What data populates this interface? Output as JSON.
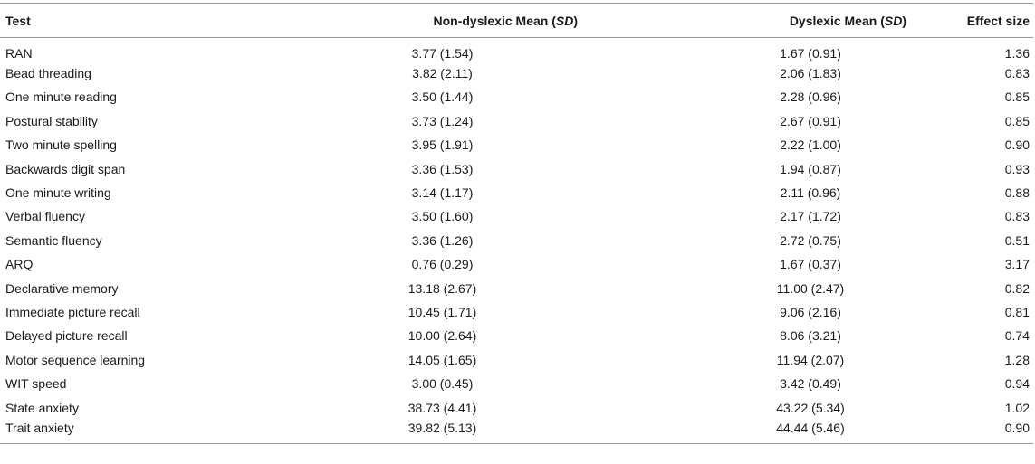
{
  "table": {
    "headers": {
      "test": "Test",
      "non_dyslexic_prefix": "Non-dyslexic Mean (",
      "non_dyslexic_sd": "SD",
      "non_dyslexic_suffix": ")",
      "dyslexic_prefix": "Dyslexic Mean (",
      "dyslexic_sd": "SD",
      "dyslexic_suffix": ")",
      "effect_size": "Effect size"
    },
    "rows": [
      {
        "test": "RAN",
        "non_dyslexic": "3.77 (1.54)",
        "dyslexic": "1.67 (0.91)",
        "effect_size": "1.36"
      },
      {
        "test": "Bead threading",
        "non_dyslexic": "3.82 (2.11)",
        "dyslexic": "2.06 (1.83)",
        "effect_size": "0.83"
      },
      {
        "test": "One minute reading",
        "non_dyslexic": "3.50 (1.44)",
        "dyslexic": "2.28 (0.96)",
        "effect_size": "0.85"
      },
      {
        "test": "Postural stability",
        "non_dyslexic": "3.73 (1.24)",
        "dyslexic": "2.67 (0.91)",
        "effect_size": "0.85"
      },
      {
        "test": "Two minute spelling",
        "non_dyslexic": "3.95 (1.91)",
        "dyslexic": "2.22 (1.00)",
        "effect_size": "0.90"
      },
      {
        "test": "Backwards digit span",
        "non_dyslexic": "3.36 (1.53)",
        "dyslexic": "1.94 (0.87)",
        "effect_size": "0.93"
      },
      {
        "test": "One minute writing",
        "non_dyslexic": "3.14 (1.17)",
        "dyslexic": "2.11 (0.96)",
        "effect_size": "0.88"
      },
      {
        "test": "Verbal fluency",
        "non_dyslexic": "3.50 (1.60)",
        "dyslexic": "2.17 (1.72)",
        "effect_size": "0.83"
      },
      {
        "test": "Semantic fluency",
        "non_dyslexic": "3.36 (1.26)",
        "dyslexic": "2.72 (0.75)",
        "effect_size": "0.51"
      },
      {
        "test": "ARQ",
        "non_dyslexic": "0.76 (0.29)",
        "dyslexic": "1.67 (0.37)",
        "effect_size": "3.17"
      },
      {
        "test": "Declarative memory",
        "non_dyslexic": "13.18 (2.67)",
        "dyslexic": "11.00 (2.47)",
        "effect_size": "0.82"
      },
      {
        "test": "Immediate picture recall",
        "non_dyslexic": "10.45 (1.71)",
        "dyslexic": "9.06 (2.16)",
        "effect_size": "0.81"
      },
      {
        "test": "Delayed picture recall",
        "non_dyslexic": "10.00 (2.64)",
        "dyslexic": "8.06 (3.21)",
        "effect_size": "0.74"
      },
      {
        "test": "Motor sequence learning",
        "non_dyslexic": "14.05 (1.65)",
        "dyslexic": "11.94 (2.07)",
        "effect_size": "1.28"
      },
      {
        "test": "WIT speed",
        "non_dyslexic": "3.00 (0.45)",
        "dyslexic": "3.42 (0.49)",
        "effect_size": "0.94"
      },
      {
        "test": "State anxiety",
        "non_dyslexic": "38.73 (4.41)",
        "dyslexic": "43.22 (5.34)",
        "effect_size": "1.02"
      },
      {
        "test": "Trait anxiety",
        "non_dyslexic": "39.82 (5.13)",
        "dyslexic": "44.44 (5.46)",
        "effect_size": "0.90"
      }
    ]
  }
}
